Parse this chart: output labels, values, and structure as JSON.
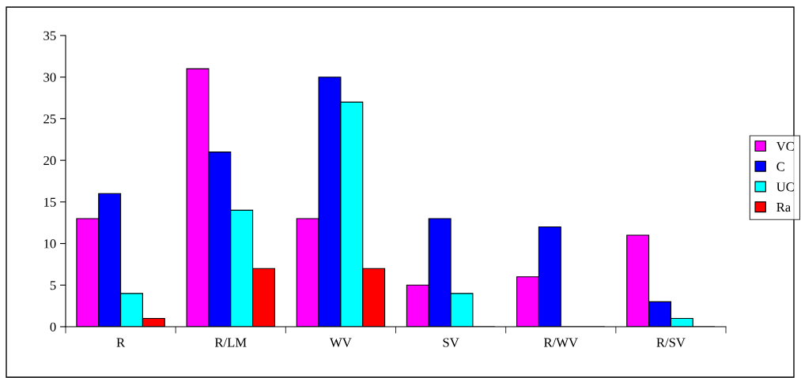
{
  "chart_data": {
    "type": "bar",
    "categories": [
      "R",
      "R/LM",
      "WV",
      "SV",
      "R/WV",
      "R/SV"
    ],
    "series": [
      {
        "name": "VC",
        "color": "#ff00ff",
        "values": [
          13,
          31,
          13,
          5,
          6,
          11
        ]
      },
      {
        "name": "C",
        "color": "#0000ff",
        "values": [
          16,
          21,
          30,
          13,
          12,
          3
        ]
      },
      {
        "name": "UC",
        "color": "#00ffff",
        "values": [
          4,
          14,
          27,
          4,
          0,
          1
        ]
      },
      {
        "name": "Ra",
        "color": "#ff0000",
        "values": [
          1,
          7,
          7,
          0,
          0,
          0
        ]
      }
    ],
    "ylim": [
      0,
      35
    ],
    "yticks": [
      0,
      5,
      10,
      15,
      20,
      25,
      30,
      35
    ],
    "grid": false,
    "legend": "right"
  }
}
